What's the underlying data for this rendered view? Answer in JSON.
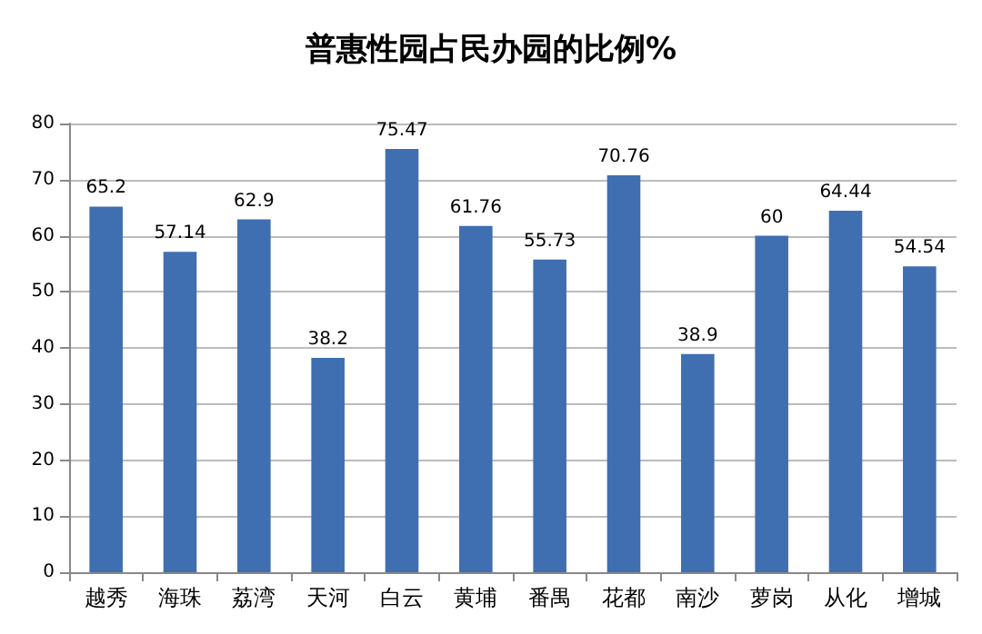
{
  "chart_data": {
    "type": "bar",
    "title": "普惠性园占民办园的比例%",
    "categories": [
      "越秀",
      "海珠",
      "荔湾",
      "天河",
      "白云",
      "黄埔",
      "番禺",
      "花都",
      "南沙",
      "萝岗",
      "从化",
      "增城"
    ],
    "values": [
      65.2,
      57.14,
      62.9,
      38.2,
      75.47,
      61.76,
      55.73,
      70.76,
      38.9,
      60,
      64.44,
      54.54
    ],
    "color": "#3f6fb0",
    "ylim": [
      0,
      80
    ],
    "yticks": [
      0,
      10,
      20,
      30,
      40,
      50,
      60,
      70,
      80
    ],
    "grid": "y",
    "data_labels": true
  }
}
